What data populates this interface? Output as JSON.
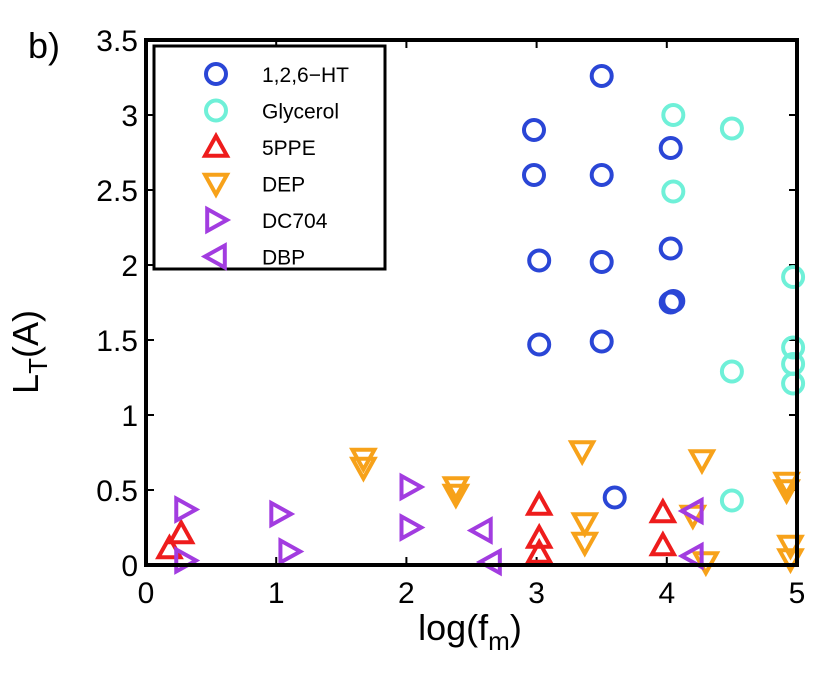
{
  "chart_data": {
    "type": "scatter",
    "panel_label": "b)",
    "xlabel_main": "log(f",
    "xlabel_sub": "m",
    "xlabel_close": ")",
    "ylabel_main": "L",
    "ylabel_sub": "T",
    "ylabel_rest": "(A)",
    "xlim": [
      0,
      5
    ],
    "ylim": [
      0,
      3.5
    ],
    "xticks": [
      "0",
      "1",
      "2",
      "3",
      "4",
      "5"
    ],
    "yticks": [
      "0",
      "0.5",
      "1",
      "1.5",
      "2",
      "2.5",
      "3",
      "3.5"
    ],
    "legend_position": "top-left",
    "series": [
      {
        "name": "1,2,6−HT",
        "marker": "circle",
        "color": "#2a46d6",
        "points": [
          [
            2.98,
            2.9
          ],
          [
            2.98,
            2.6
          ],
          [
            3.02,
            2.03
          ],
          [
            3.02,
            1.47
          ],
          [
            3.5,
            3.26
          ],
          [
            3.5,
            2.6
          ],
          [
            3.5,
            2.02
          ],
          [
            3.5,
            1.49
          ],
          [
            3.6,
            0.45
          ],
          [
            4.03,
            2.78
          ],
          [
            4.03,
            2.11
          ],
          [
            4.03,
            1.75
          ],
          [
            4.05,
            1.76
          ]
        ]
      },
      {
        "name": "Glycerol",
        "marker": "circle",
        "color": "#6ff0d8",
        "points": [
          [
            4.05,
            3.0
          ],
          [
            4.05,
            2.49
          ],
          [
            4.5,
            2.91
          ],
          [
            4.5,
            1.29
          ],
          [
            4.5,
            0.43
          ],
          [
            4.97,
            1.92
          ],
          [
            4.97,
            1.45
          ],
          [
            4.97,
            1.34
          ],
          [
            4.97,
            1.21
          ]
        ]
      },
      {
        "name": "5PPE",
        "marker": "triangle-up",
        "color": "#ee1c1c",
        "points": [
          [
            0.18,
            0.11
          ],
          [
            0.27,
            0.21
          ],
          [
            3.02,
            0.4
          ],
          [
            3.02,
            0.18
          ],
          [
            3.02,
            0.08
          ],
          [
            3.97,
            0.35
          ],
          [
            3.97,
            0.13
          ]
        ]
      },
      {
        "name": "DEP",
        "marker": "triangle-down",
        "color": "#f7a21a",
        "points": [
          [
            1.67,
            0.71
          ],
          [
            1.67,
            0.65
          ],
          [
            2.38,
            0.52
          ],
          [
            2.38,
            0.47
          ],
          [
            3.35,
            0.76
          ],
          [
            3.37,
            0.28
          ],
          [
            3.37,
            0.15
          ],
          [
            4.2,
            0.33
          ],
          [
            4.27,
            0.7
          ],
          [
            4.3,
            0.02
          ],
          [
            4.92,
            0.55
          ],
          [
            4.92,
            0.5
          ],
          [
            4.95,
            0.13
          ],
          [
            4.95,
            0.04
          ]
        ]
      },
      {
        "name": "DC704",
        "marker": "triangle-right",
        "color": "#a23ce0",
        "points": [
          [
            0.3,
            0.37
          ],
          [
            0.3,
            0.03
          ],
          [
            1.03,
            0.34
          ],
          [
            1.1,
            0.09
          ],
          [
            2.03,
            0.52
          ],
          [
            2.03,
            0.25
          ]
        ]
      },
      {
        "name": "DBP",
        "marker": "triangle-left",
        "color": "#a23ce0",
        "points": [
          [
            2.58,
            0.23
          ],
          [
            2.65,
            0.02
          ],
          [
            4.2,
            0.36
          ],
          [
            4.2,
            0.06
          ]
        ]
      }
    ]
  }
}
